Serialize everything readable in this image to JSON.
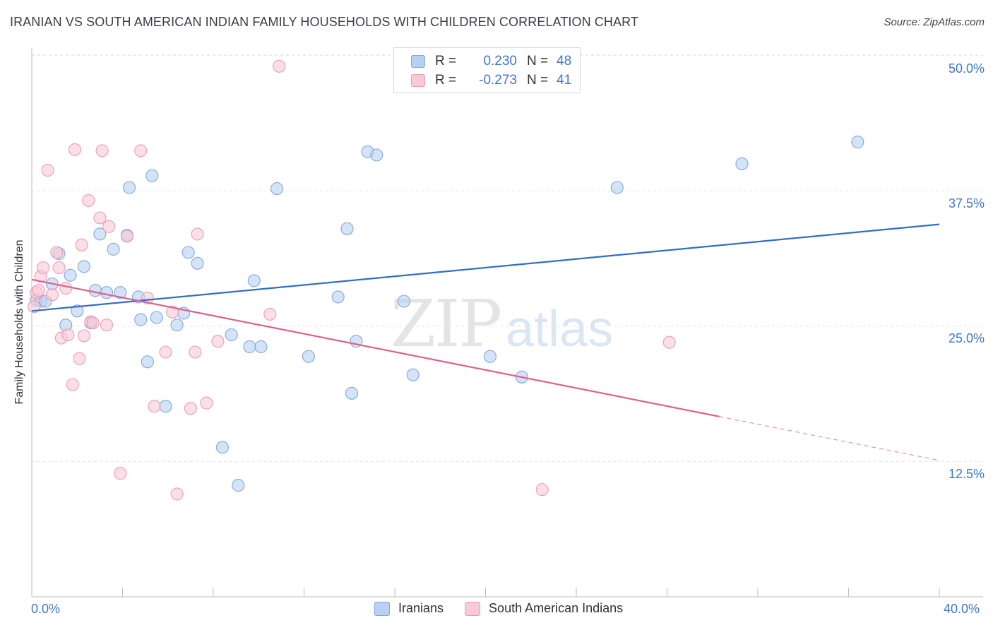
{
  "title": "IRANIAN VS SOUTH AMERICAN INDIAN FAMILY HOUSEHOLDS WITH CHILDREN CORRELATION CHART",
  "source": "Source: ZipAtlas.com",
  "watermark": {
    "zip": "ZIP",
    "atlas": "atlas"
  },
  "legend": {
    "rows": [
      {
        "r_label": "R =",
        "r_value": "0.230",
        "n_label": "N =",
        "n_value": "48"
      },
      {
        "r_label": "R =",
        "r_value": "-0.273",
        "n_label": "N =",
        "n_value": "41"
      }
    ]
  },
  "bottom_legend": [
    "Iranians",
    "South American Indians"
  ],
  "x_axis": {
    "min_label": "0.0%",
    "max_label": "40.0%"
  },
  "y_axis": {
    "ticks": [
      "50.0%",
      "37.5%",
      "25.0%",
      "12.5%"
    ]
  },
  "colors": {
    "blue_fill": "#b9d0f0",
    "blue_stroke": "#7fa8e0",
    "blue_line": "#2f6fc8",
    "pink_fill": "#f9c9d6",
    "pink_stroke": "#ef9ab5",
    "pink_line": "#e0608a",
    "axis_text": "#3f78c8"
  },
  "chart_data": {
    "type": "scatter",
    "title": "IRANIAN VS SOUTH AMERICAN INDIAN FAMILY HOUSEHOLDS WITH CHILDREN CORRELATION CHART",
    "xlabel": "",
    "ylabel": "Family Households with Children",
    "xlim": [
      0,
      40
    ],
    "ylim": [
      0,
      52
    ],
    "yticks": [
      12.5,
      25.0,
      37.5,
      50.0
    ],
    "grid": true,
    "legend_placement": "top-center",
    "series": [
      {
        "name": "Iranians",
        "r": 0.23,
        "n": 48,
        "trend": {
          "x": [
            0,
            40
          ],
          "y": [
            26.4,
            34.4
          ],
          "dashed_from": null
        },
        "points": [
          [
            0.2,
            27.4
          ],
          [
            0.4,
            27.3
          ],
          [
            0.6,
            27.3
          ],
          [
            0.9,
            28.9
          ],
          [
            1.2,
            31.7
          ],
          [
            1.5,
            25.1
          ],
          [
            1.7,
            29.7
          ],
          [
            2.0,
            26.4
          ],
          [
            2.3,
            30.5
          ],
          [
            2.6,
            25.3
          ],
          [
            2.8,
            28.3
          ],
          [
            3.0,
            33.5
          ],
          [
            3.3,
            28.1
          ],
          [
            3.6,
            32.1
          ],
          [
            3.9,
            28.1
          ],
          [
            4.2,
            33.4
          ],
          [
            4.3,
            37.8
          ],
          [
            4.7,
            27.7
          ],
          [
            4.8,
            25.6
          ],
          [
            5.1,
            21.7
          ],
          [
            5.3,
            38.9
          ],
          [
            5.5,
            25.8
          ],
          [
            5.9,
            17.6
          ],
          [
            6.4,
            25.1
          ],
          [
            6.7,
            26.2
          ],
          [
            6.9,
            31.8
          ],
          [
            7.3,
            30.8
          ],
          [
            8.4,
            13.8
          ],
          [
            8.8,
            24.2
          ],
          [
            9.1,
            10.3
          ],
          [
            9.6,
            23.1
          ],
          [
            9.8,
            29.2
          ],
          [
            10.1,
            23.1
          ],
          [
            10.8,
            37.7
          ],
          [
            12.2,
            22.2
          ],
          [
            13.5,
            27.7
          ],
          [
            13.9,
            34.0
          ],
          [
            14.1,
            18.8
          ],
          [
            14.3,
            23.6
          ],
          [
            14.8,
            41.1
          ],
          [
            15.2,
            40.8
          ],
          [
            16.4,
            27.3
          ],
          [
            16.8,
            20.5
          ],
          [
            20.2,
            22.2
          ],
          [
            21.6,
            20.3
          ],
          [
            25.8,
            37.8
          ],
          [
            31.3,
            40.0
          ],
          [
            36.4,
            42.0
          ]
        ]
      },
      {
        "name": "South American Indians",
        "r": -0.273,
        "n": 41,
        "trend": {
          "x": [
            0,
            40
          ],
          "y": [
            29.3,
            12.6
          ],
          "dashed_from": 30.3
        },
        "points": [
          [
            0.1,
            26.8
          ],
          [
            0.2,
            28.1
          ],
          [
            0.3,
            28.3
          ],
          [
            0.4,
            29.6
          ],
          [
            0.5,
            30.4
          ],
          [
            0.7,
            39.4
          ],
          [
            0.9,
            27.9
          ],
          [
            1.1,
            31.8
          ],
          [
            1.2,
            30.4
          ],
          [
            1.3,
            23.9
          ],
          [
            1.5,
            28.5
          ],
          [
            1.6,
            24.2
          ],
          [
            1.8,
            19.6
          ],
          [
            1.9,
            41.3
          ],
          [
            2.1,
            22.0
          ],
          [
            2.2,
            32.5
          ],
          [
            2.3,
            24.1
          ],
          [
            2.5,
            36.6
          ],
          [
            2.6,
            25.4
          ],
          [
            2.7,
            25.3
          ],
          [
            3.0,
            35.0
          ],
          [
            3.1,
            41.2
          ],
          [
            3.3,
            25.1
          ],
          [
            3.4,
            34.2
          ],
          [
            3.9,
            11.4
          ],
          [
            4.2,
            33.3
          ],
          [
            4.8,
            41.2
          ],
          [
            5.1,
            27.6
          ],
          [
            5.4,
            17.6
          ],
          [
            5.9,
            22.6
          ],
          [
            6.2,
            26.3
          ],
          [
            6.4,
            9.5
          ],
          [
            7.0,
            17.4
          ],
          [
            7.2,
            22.6
          ],
          [
            7.3,
            33.5
          ],
          [
            7.7,
            17.9
          ],
          [
            8.2,
            23.6
          ],
          [
            10.5,
            26.1
          ],
          [
            10.9,
            49.0
          ],
          [
            22.5,
            9.9
          ],
          [
            28.1,
            23.5
          ]
        ]
      }
    ]
  }
}
